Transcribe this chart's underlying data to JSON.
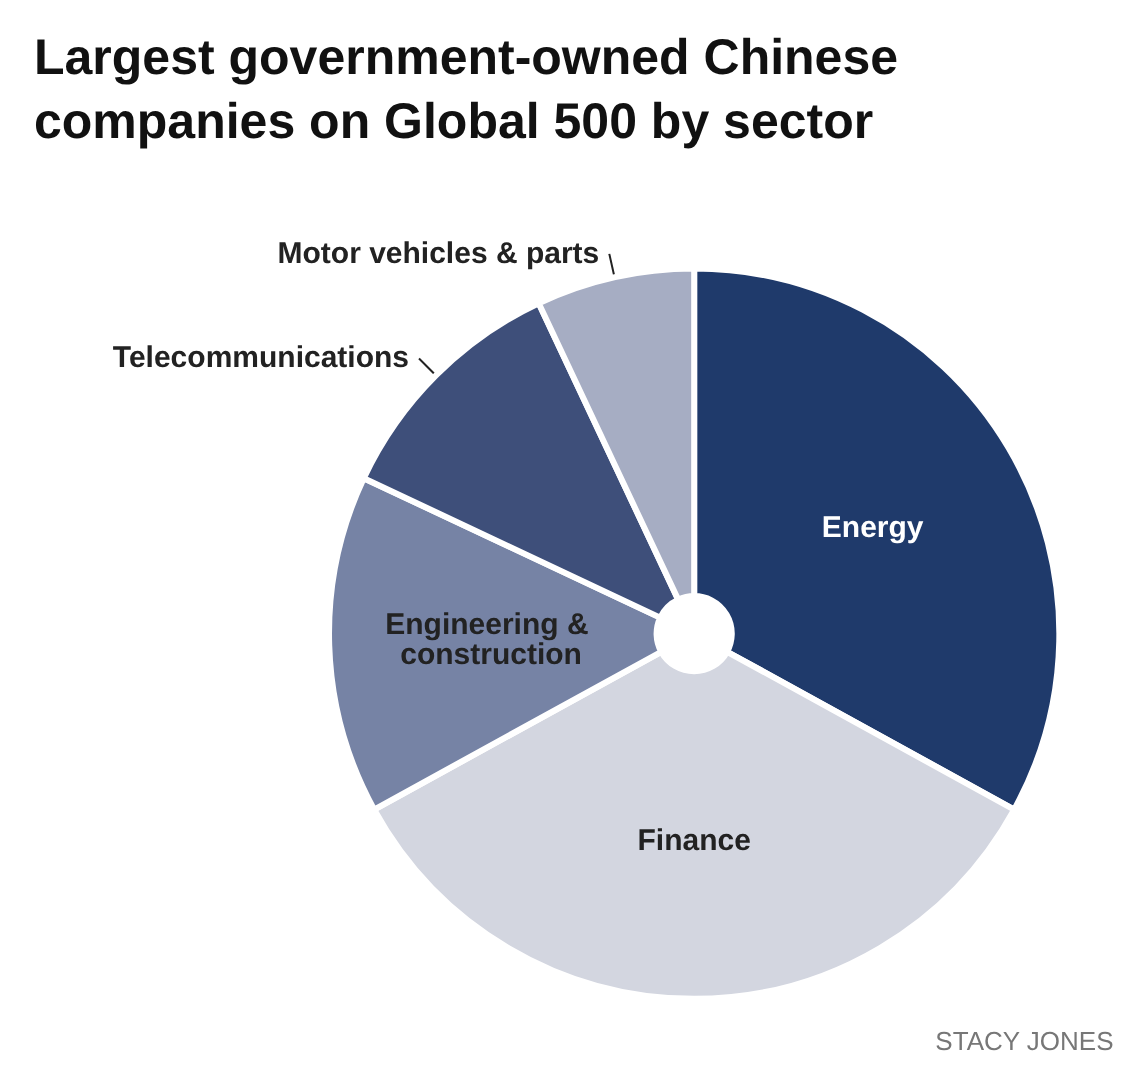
{
  "chart_data": {
    "type": "pie",
    "title": "Largest government-owned Chinese companies on Global 500 by sector",
    "categories": [
      "Energy",
      "Finance",
      "Engineering & construction",
      "Telecommunications",
      "Motor vehicles & parts"
    ],
    "values": [
      33,
      34,
      15,
      11,
      7
    ],
    "colors": [
      "#1f3a6b",
      "#d3d6e0",
      "#7683a5",
      "#3e4f7a",
      "#a6adc3"
    ],
    "annotations": [
      "STACY JONES"
    ]
  }
}
